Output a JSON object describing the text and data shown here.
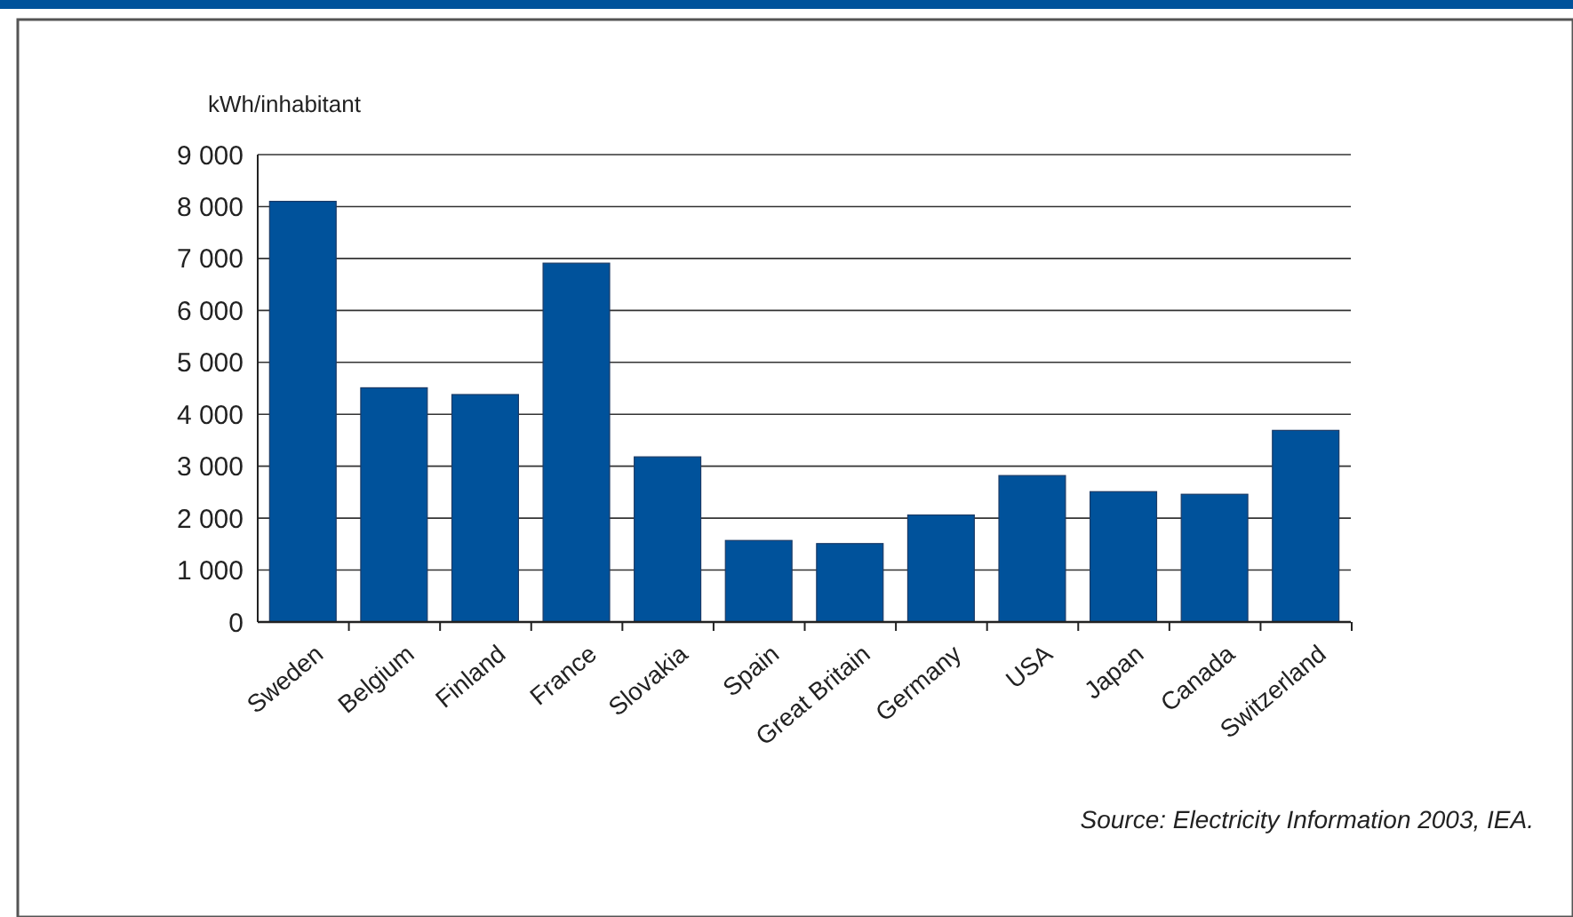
{
  "chart_data": {
    "type": "bar",
    "ylabel": "kWh/inhabitant",
    "categories": [
      "Sweden",
      "Belgium",
      "Finland",
      "France",
      "Slovakia",
      "Spain",
      "Great Britain",
      "Germany",
      "USA",
      "Japan",
      "Canada",
      "Switzerland"
    ],
    "values": [
      8100,
      4510,
      4380,
      6910,
      3180,
      1570,
      1510,
      2060,
      2820,
      2510,
      2460,
      3690
    ],
    "color": "#00529b",
    "ylim": [
      0,
      9000
    ],
    "yticks": [
      0,
      {
        "value": 1000,
        "label": "1 000"
      },
      {
        "value": 2000,
        "label": "2 000"
      },
      {
        "value": 3000,
        "label": "3 000"
      },
      {
        "value": 4000,
        "label": "4 000"
      },
      {
        "value": 5000,
        "label": "5 000"
      },
      {
        "value": 6000,
        "label": "6 000"
      },
      {
        "value": 7000,
        "label": "7 000"
      },
      {
        "value": 8000,
        "label": "8 000"
      },
      {
        "value": 9000,
        "label": "9 000"
      }
    ],
    "grid": "y",
    "annotations": [
      "Source: Electricity Information 2003, IEA."
    ]
  }
}
